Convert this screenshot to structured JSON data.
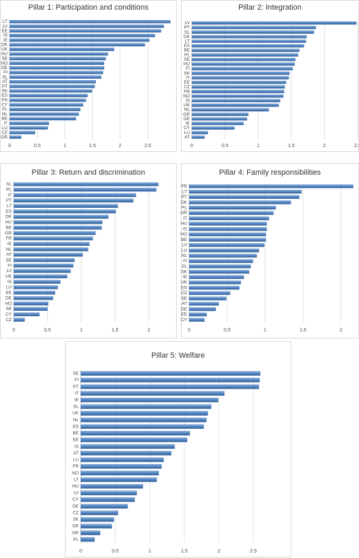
{
  "chart_data": [
    {
      "type": "bar",
      "orientation": "horizontal",
      "title": "Pillar 1: Participation and conditions",
      "categories": [
        "LT",
        "LV",
        "EE",
        "IS",
        "IE",
        "DK",
        "UK",
        "HU",
        "SE",
        "NO",
        "DE",
        "FI",
        "SL",
        "AT",
        "PT",
        "SK",
        "ES",
        "FR",
        "CY",
        "PL",
        "NL",
        "BE",
        "IT",
        "LU",
        "CZ",
        "GR"
      ],
      "values": [
        2.91,
        2.79,
        2.74,
        2.63,
        2.53,
        2.45,
        1.89,
        1.78,
        1.74,
        1.71,
        1.71,
        1.69,
        1.66,
        1.56,
        1.54,
        1.49,
        1.41,
        1.38,
        1.33,
        1.28,
        1.25,
        1.2,
        0.71,
        0.69,
        0.46,
        0.21
      ],
      "color": "#4f81bd",
      "xlim": [
        0,
        3
      ],
      "xticks": [
        0,
        0.5,
        1,
        1.5,
        2,
        2.5
      ],
      "grid": true
    },
    {
      "type": "bar",
      "orientation": "horizontal",
      "title": "Pillar 2: Integration",
      "categories": [
        "LV",
        "PT",
        "SL",
        "DK",
        "LT",
        "ES",
        "BE",
        "PL",
        "SE",
        "HU",
        "FI",
        "SK",
        "IT",
        "EE",
        "CZ",
        "FR",
        "NO",
        "IS",
        "UK",
        "NL",
        "GR",
        "DE",
        "IE",
        "CY",
        "LU",
        "AT"
      ],
      "values": [
        2.48,
        1.87,
        1.84,
        1.73,
        1.72,
        1.69,
        1.62,
        1.6,
        1.56,
        1.55,
        1.52,
        1.47,
        1.46,
        1.42,
        1.4,
        1.39,
        1.38,
        1.33,
        1.31,
        1.16,
        0.85,
        0.83,
        0.78,
        0.64,
        0.24,
        0.19
      ],
      "color": "#4f81bd",
      "xlim": [
        0,
        2.5
      ],
      "xticks": [
        0,
        0.5,
        1,
        1.5,
        2,
        2.5
      ],
      "grid": true
    },
    {
      "type": "bar",
      "orientation": "horizontal",
      "title": "Pillar 3: Return and discrimination",
      "categories": [
        "SL",
        "PL",
        "IT",
        "PT",
        "LT",
        "ES",
        "DK",
        "HU",
        "BE",
        "GR",
        "FR",
        "IE",
        "NL",
        "AT",
        "SE",
        "FI",
        "LV",
        "UK",
        "IS",
        "LU",
        "EE",
        "DE",
        "HO",
        "SK",
        "CY",
        "CZ"
      ],
      "values": [
        2.14,
        2.11,
        1.81,
        1.77,
        1.54,
        1.51,
        1.4,
        1.31,
        1.3,
        1.21,
        1.17,
        1.12,
        1.1,
        1.02,
        0.9,
        0.88,
        0.84,
        0.79,
        0.69,
        0.65,
        0.61,
        0.58,
        0.51,
        0.5,
        0.38,
        0.16
      ],
      "color": "#4f81bd",
      "xlim": [
        0,
        2.25
      ],
      "xticks": [
        0,
        0.5,
        1,
        1.5,
        2
      ],
      "grid": true
    },
    {
      "type": "bar",
      "orientation": "horizontal",
      "title": "Pillar 4: Family responsibilities",
      "categories": [
        "FR",
        "LT",
        "PT",
        "DK",
        "PL",
        "GR",
        "IT",
        "HU",
        "IS",
        "HO",
        "BE",
        "LV",
        "LU",
        "NL",
        "FI",
        "SL",
        "SK",
        "IE",
        "UK",
        "ES",
        "CZ",
        "SE",
        "AT",
        "DE",
        "EE",
        "CY"
      ],
      "values": [
        2.16,
        1.48,
        1.45,
        1.34,
        1.14,
        1.11,
        1.05,
        1.02,
        1.02,
        1.01,
        1.01,
        0.99,
        0.92,
        0.89,
        0.84,
        0.81,
        0.79,
        0.72,
        0.68,
        0.66,
        0.54,
        0.49,
        0.39,
        0.35,
        0.23,
        0.2
      ],
      "color": "#4f81bd",
      "xlim": [
        0,
        2.2
      ],
      "xticks": [
        0,
        0.5,
        1,
        1.5,
        2
      ],
      "grid": true
    },
    {
      "type": "bar",
      "orientation": "horizontal",
      "title": "Pillar 5: Welfare",
      "categories": [
        "SE",
        "FI",
        "PT",
        "IT",
        "IE",
        "SL",
        "UK",
        "NL",
        "ES",
        "BE",
        "EE",
        "IS",
        "AT",
        "LU",
        "FR",
        "NO",
        "LT",
        "HU",
        "LV",
        "CY",
        "DE",
        "CZ",
        "SK",
        "DK",
        "GR",
        "PL"
      ],
      "values": [
        2.6,
        2.59,
        2.58,
        2.08,
        1.99,
        1.89,
        1.84,
        1.82,
        1.78,
        1.58,
        1.54,
        1.36,
        1.31,
        1.2,
        1.17,
        1.13,
        1.1,
        0.9,
        0.81,
        0.78,
        0.68,
        0.54,
        0.48,
        0.45,
        0.28,
        0.2
      ],
      "color": "#4f81bd",
      "xlim": [
        0,
        2.7
      ],
      "xticks": [
        0,
        0.5,
        1,
        1.5,
        2,
        2.5
      ],
      "grid": true
    }
  ]
}
